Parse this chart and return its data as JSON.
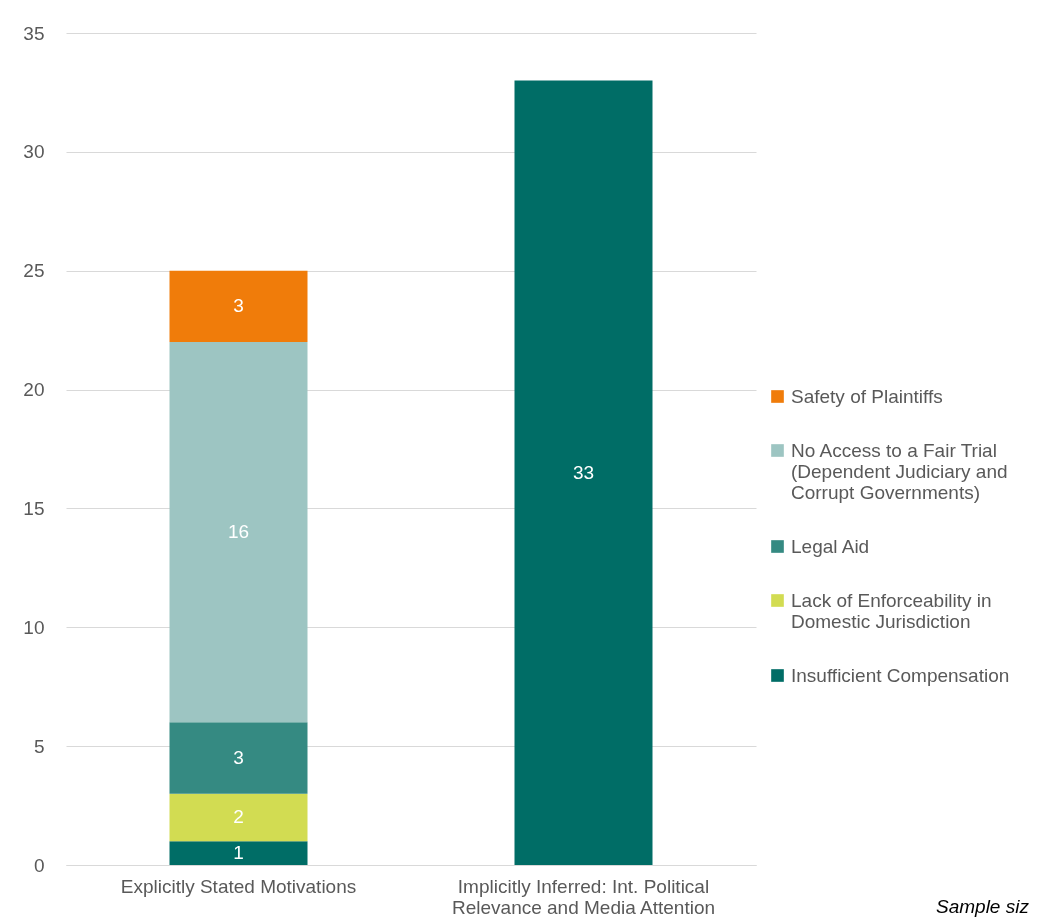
{
  "chart_data": {
    "type": "bar",
    "stacked": true,
    "categories": [
      "Explicitly Stated Motivations",
      "Implicitly Inferred: Int. Political Relevance and Media Attention"
    ],
    "series": [
      {
        "name": "Insufficient Compensation",
        "color": "#006d66",
        "values": [
          1,
          33
        ]
      },
      {
        "name": "Lack of Enforceability in Domestic Jurisdiction",
        "color": "#d2dc52",
        "values": [
          2,
          null
        ]
      },
      {
        "name": "Legal Aid",
        "color": "#358a82",
        "values": [
          3,
          null
        ]
      },
      {
        "name": "No Access to a Fair Trial (Dependent Judiciary and Corrupt Governments)",
        "color": "#9dc5c2",
        "values": [
          16,
          null
        ]
      },
      {
        "name": "Safety of Plaintiffs",
        "color": "#f07c0a",
        "values": [
          3,
          null
        ]
      }
    ],
    "ylim": [
      0,
      35
    ],
    "yticks": [
      0,
      5,
      10,
      15,
      20,
      25,
      30,
      35
    ],
    "grid": "y",
    "legend": "right",
    "data_labels": true,
    "annotations": [
      "Sample siz"
    ]
  }
}
